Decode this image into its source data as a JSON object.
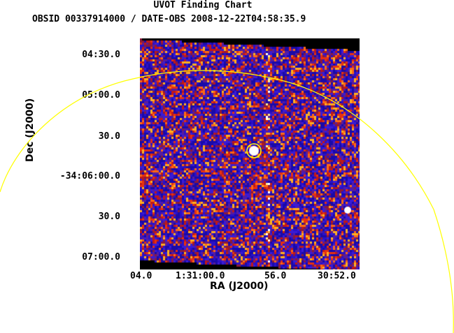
{
  "header": {
    "title": "UVOT Finding Chart",
    "subtitle": "OBSID 00337914000 / DATE-OBS 2008-12-22T04:58:35.9"
  },
  "axes": {
    "xlabel": "RA (J2000)",
    "ylabel": "Dec (J2000)",
    "dec_ticks": [
      "04:30.0",
      "05:00.0",
      "30.0",
      "-34:06:00.0",
      "30.0",
      "07:00.0"
    ],
    "ra_ticks": [
      "04.0",
      "1:31:00.0",
      "56.0",
      "30:52.0"
    ]
  },
  "colors": {
    "circle": "#ffff00",
    "source_circle": "#ffff00",
    "background_frame": "#000000",
    "palette": [
      "#1a0aa8",
      "#2a10c8",
      "#3b1bd6",
      "#5a1c9a",
      "#8a1a3c",
      "#c01818",
      "#e83010",
      "#ff6a14",
      "#ffb020",
      "#fff090",
      "#ffffff"
    ]
  }
}
